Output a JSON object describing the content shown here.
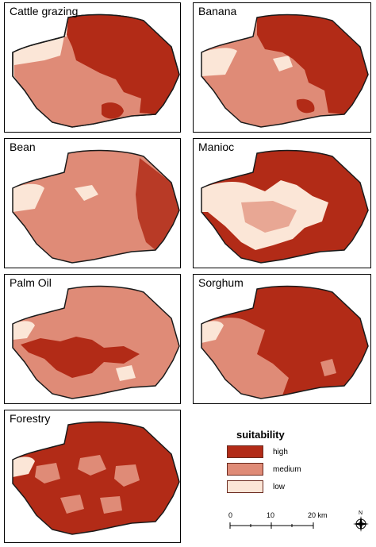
{
  "colors": {
    "high": "#b22b17",
    "medium": "#df8b77",
    "low": "#fbe6d7",
    "outline": "#1a1a1a"
  },
  "panels": [
    {
      "title": "Cattle grazing"
    },
    {
      "title": "Banana"
    },
    {
      "title": "Bean"
    },
    {
      "title": "Manioc"
    },
    {
      "title": "Palm Oil"
    },
    {
      "title": "Sorghum"
    },
    {
      "title": "Forestry"
    }
  ],
  "legend": {
    "title": "suitability",
    "items": [
      {
        "label": "high",
        "class": "high"
      },
      {
        "label": "medium",
        "class": "medium"
      },
      {
        "label": "low",
        "class": "low"
      }
    ]
  },
  "scalebar": {
    "ticks": [
      "0",
      "10",
      "20 km"
    ]
  },
  "north_arrow": {
    "label": "N",
    "icon": "compass-icon"
  }
}
